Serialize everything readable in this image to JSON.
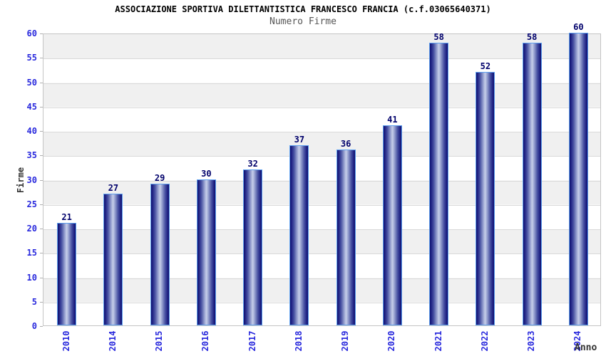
{
  "header": {
    "title": "ASSOCIAZIONE SPORTIVA DILETTANTISTICA FRANCESCO FRANCIA (c.f.03065640371)",
    "subtitle": "Numero Firme"
  },
  "chart_data": {
    "type": "bar",
    "title": "ASSOCIAZIONE SPORTIVA DILETTANTISTICA FRANCESCO FRANCIA (c.f.03065640371)",
    "subtitle": "Numero Firme",
    "categories": [
      "2010",
      "2014",
      "2015",
      "2016",
      "2017",
      "2018",
      "2019",
      "2020",
      "2021",
      "2022",
      "2023",
      "2024"
    ],
    "values": [
      21,
      27,
      29,
      30,
      32,
      37,
      36,
      41,
      58,
      52,
      58,
      60
    ],
    "xlabel": "Anno",
    "ylabel": "Firme",
    "ylim": [
      0,
      60
    ],
    "ytick_step": 5,
    "yticks": [
      0,
      5,
      10,
      15,
      20,
      25,
      30,
      35,
      40,
      45,
      50,
      55,
      60
    ],
    "grid": true,
    "legend_position": "none",
    "value_labels_shown": true,
    "colors": {
      "tick_label": "#2929dd",
      "value_label": "#00006b",
      "bar_dark": "#0e0e6b",
      "bar_mid": "#4a54a4",
      "bar_light": "#c7cfea",
      "bar_border": "#5ea0ef",
      "band_gray": "#f0f0f0",
      "band_white": "#ffffff",
      "grid_line": "#d9d9d9",
      "plot_border": "#c4c4c4",
      "tick_mark": "#b0b0b0",
      "title_color": "#000000",
      "subtitle_color": "#555555",
      "axis_title_color": "#333333"
    }
  }
}
